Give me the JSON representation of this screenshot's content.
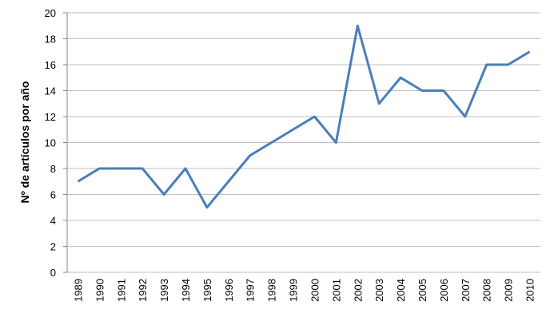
{
  "chart_data": {
    "type": "line",
    "y_label": "Nº de artículos por año",
    "categories": [
      "1989",
      "1990",
      "1991",
      "1992",
      "1993",
      "1994",
      "1995",
      "1996",
      "1997",
      "1998",
      "1999",
      "2000",
      "2001",
      "2002",
      "2003",
      "2004",
      "2005",
      "2006",
      "2007",
      "2008",
      "2009",
      "2010"
    ],
    "values": [
      7,
      8,
      8,
      8,
      6,
      8,
      5,
      7,
      9,
      10,
      11,
      12,
      10,
      19,
      13,
      15,
      14,
      14,
      12,
      16,
      16,
      17
    ],
    "color": "#4a7ebb",
    "ylim": [
      0,
      20
    ],
    "yticks": [
      0,
      2,
      4,
      6,
      8,
      10,
      12,
      14,
      16,
      18,
      20
    ],
    "grid": true
  }
}
